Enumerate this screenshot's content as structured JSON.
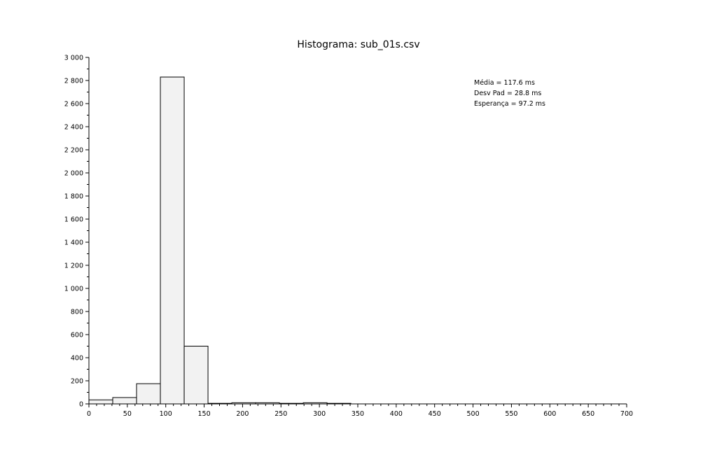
{
  "chart_data": {
    "type": "bar",
    "title": "Histograma: sub_01s.csv",
    "xlabel": "",
    "ylabel": "",
    "xlim": [
      0,
      700
    ],
    "ylim": [
      0,
      3000
    ],
    "xticks": [
      "0",
      "50",
      "100",
      "150",
      "200",
      "250",
      "300",
      "350",
      "400",
      "450",
      "500",
      "550",
      "600",
      "650",
      "700"
    ],
    "yticks": [
      "0",
      "200",
      "400",
      "600",
      "800",
      "1 000",
      "1 200",
      "1 400",
      "1 600",
      "1 800",
      "2 000",
      "2 200",
      "2 400",
      "2 600",
      "2 800",
      "3 000"
    ],
    "bins": [
      {
        "x0": 0,
        "x1": 31,
        "value": 35
      },
      {
        "x0": 31,
        "x1": 62,
        "value": 55
      },
      {
        "x0": 62,
        "x1": 93,
        "value": 175
      },
      {
        "x0": 93,
        "x1": 124,
        "value": 2830
      },
      {
        "x0": 124,
        "x1": 155,
        "value": 500
      },
      {
        "x0": 155,
        "x1": 186,
        "value": 5
      },
      {
        "x0": 186,
        "x1": 217,
        "value": 10
      },
      {
        "x0": 217,
        "x1": 248,
        "value": 10
      },
      {
        "x0": 248,
        "x1": 279,
        "value": 5
      },
      {
        "x0": 279,
        "x1": 310,
        "value": 10
      },
      {
        "x0": 310,
        "x1": 341,
        "value": 5
      }
    ],
    "annotations": [
      "Média = 117.6 ms",
      "Desv Pad = 28.8 ms",
      "Esperança = 97.2 ms"
    ],
    "grid": false,
    "legend": "none"
  }
}
